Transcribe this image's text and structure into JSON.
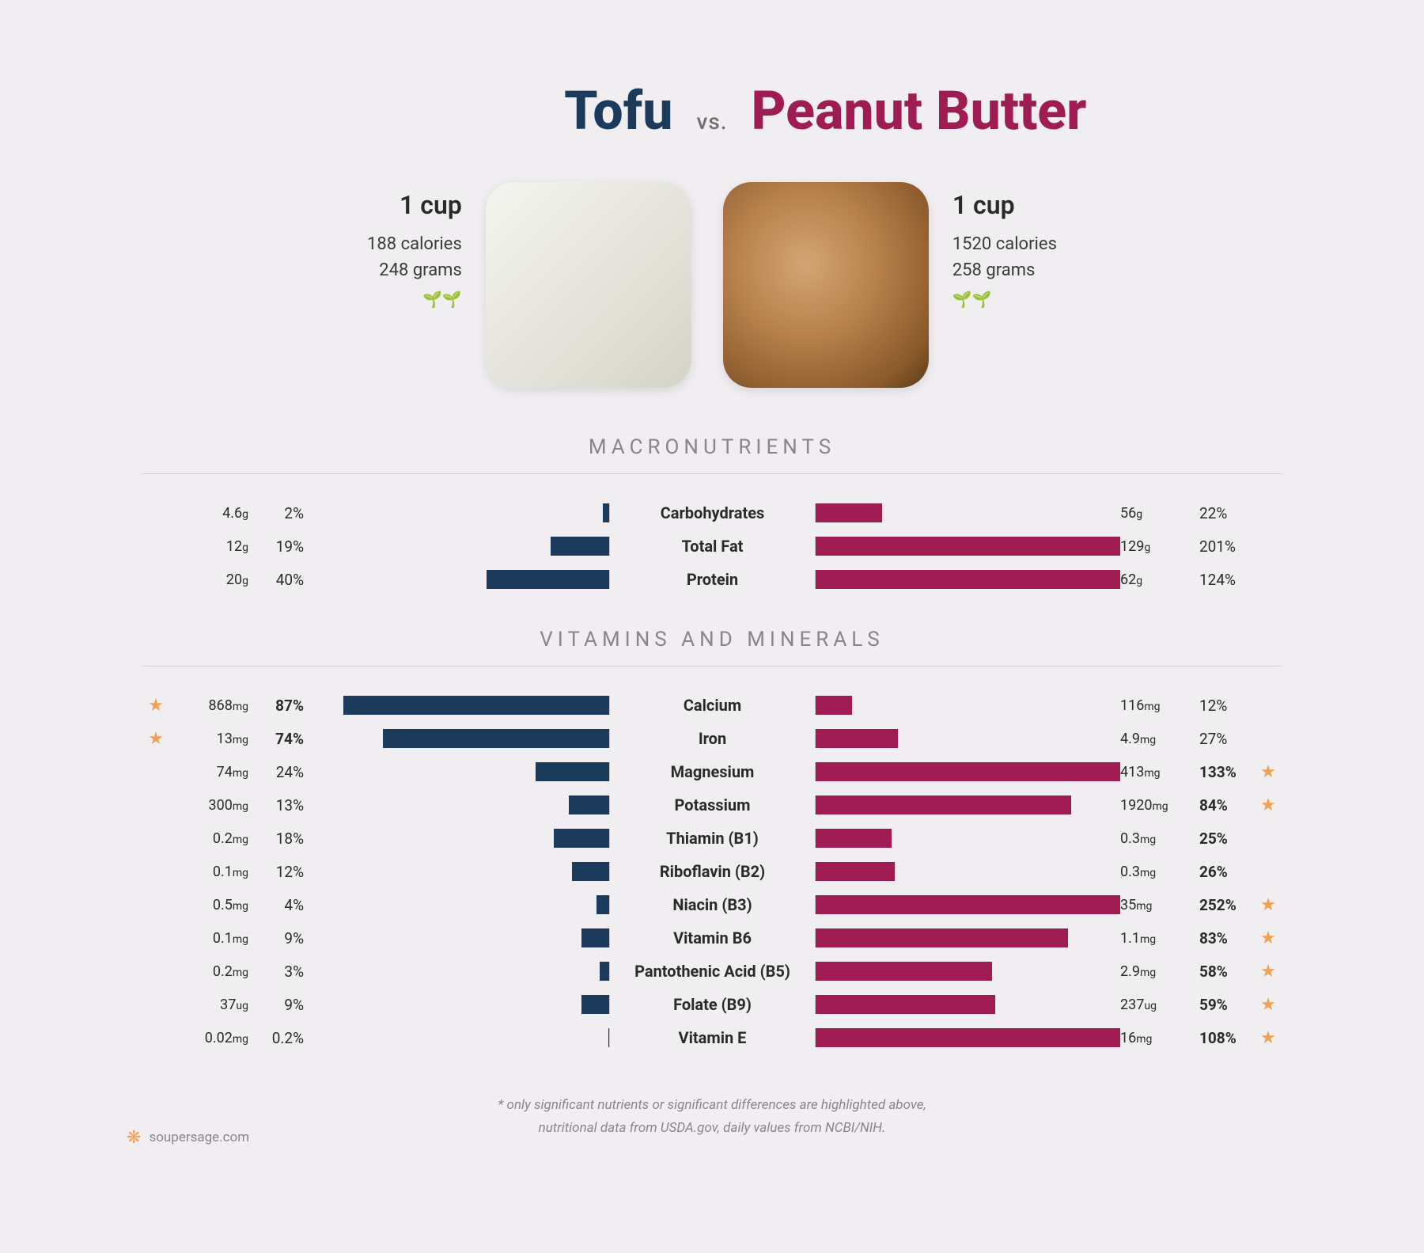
{
  "title": {
    "left": "Tofu",
    "vs": "vs.",
    "right": "Peanut Butter"
  },
  "colors": {
    "left": "#1b3a5c",
    "right": "#9e1c52",
    "star": "#f2a053",
    "text": "#2a2a2a",
    "muted": "#8a858a",
    "bg": "#f0eef0"
  },
  "foods": {
    "left": {
      "serving": "1 cup",
      "calories": "188 calories",
      "grams": "248 grams",
      "plant_icons": "🌱🌱"
    },
    "right": {
      "serving": "1 cup",
      "calories": "1520 calories",
      "grams": "258 grams",
      "plant_icons": "🌱🌱"
    }
  },
  "sections": {
    "macros": {
      "title": "MACRONUTRIENTS"
    },
    "vitmin": {
      "title": "VITAMINS AND MINERALS"
    }
  },
  "bar_max_pct": 100,
  "macros": [
    {
      "label": "Carbohydrates",
      "left_amt": "4.6",
      "left_unit": "g",
      "left_pct": 2,
      "right_amt": "56",
      "right_unit": "g",
      "right_pct": 22
    },
    {
      "label": "Total Fat",
      "left_amt": "12",
      "left_unit": "g",
      "left_pct": 19,
      "right_amt": "129",
      "right_unit": "g",
      "right_pct": 201
    },
    {
      "label": "Protein",
      "left_amt": "20",
      "left_unit": "g",
      "left_pct": 40,
      "right_amt": "62",
      "right_unit": "g",
      "right_pct": 124
    }
  ],
  "vitmin": [
    {
      "label": "Calcium",
      "left_amt": "868",
      "left_unit": "mg",
      "left_pct": 87,
      "left_bold": true,
      "left_star": true,
      "right_amt": "116",
      "right_unit": "mg",
      "right_pct": 12,
      "right_bold": false,
      "right_star": false
    },
    {
      "label": "Iron",
      "left_amt": "13",
      "left_unit": "mg",
      "left_pct": 74,
      "left_bold": true,
      "left_star": true,
      "right_amt": "4.9",
      "right_unit": "mg",
      "right_pct": 27,
      "right_bold": false,
      "right_star": false
    },
    {
      "label": "Magnesium",
      "left_amt": "74",
      "left_unit": "mg",
      "left_pct": 24,
      "left_bold": false,
      "left_star": false,
      "right_amt": "413",
      "right_unit": "mg",
      "right_pct": 133,
      "right_bold": true,
      "right_star": true
    },
    {
      "label": "Potassium",
      "left_amt": "300",
      "left_unit": "mg",
      "left_pct": 13,
      "left_bold": false,
      "left_star": false,
      "right_amt": "1920",
      "right_unit": "mg",
      "right_pct": 84,
      "right_bold": true,
      "right_star": true
    },
    {
      "label": "Thiamin (B1)",
      "left_amt": "0.2",
      "left_unit": "mg",
      "left_pct": 18,
      "left_bold": false,
      "left_star": false,
      "right_amt": "0.3",
      "right_unit": "mg",
      "right_pct": 25,
      "right_bold": true,
      "right_star": false
    },
    {
      "label": "Riboflavin (B2)",
      "left_amt": "0.1",
      "left_unit": "mg",
      "left_pct": 12,
      "left_bold": false,
      "left_star": false,
      "right_amt": "0.3",
      "right_unit": "mg",
      "right_pct": 26,
      "right_bold": true,
      "right_star": false
    },
    {
      "label": "Niacin (B3)",
      "left_amt": "0.5",
      "left_unit": "mg",
      "left_pct": 4,
      "left_bold": false,
      "left_star": false,
      "right_amt": "35",
      "right_unit": "mg",
      "right_pct": 252,
      "right_bold": true,
      "right_star": true
    },
    {
      "label": "Vitamin B6",
      "left_amt": "0.1",
      "left_unit": "mg",
      "left_pct": 9,
      "left_bold": false,
      "left_star": false,
      "right_amt": "1.1",
      "right_unit": "mg",
      "right_pct": 83,
      "right_bold": true,
      "right_star": true
    },
    {
      "label": "Pantothenic Acid (B5)",
      "left_amt": "0.2",
      "left_unit": "mg",
      "left_pct": 3,
      "left_bold": false,
      "left_star": false,
      "right_amt": "2.9",
      "right_unit": "mg",
      "right_pct": 58,
      "right_bold": true,
      "right_star": true
    },
    {
      "label": "Folate (B9)",
      "left_amt": "37",
      "left_unit": "ug",
      "left_pct": 9,
      "left_bold": false,
      "left_star": false,
      "right_amt": "237",
      "right_unit": "ug",
      "right_pct": 59,
      "right_bold": true,
      "right_star": true
    },
    {
      "label": "Vitamin E",
      "left_amt": "0.02",
      "left_unit": "mg",
      "left_pct": 0.2,
      "left_bold": false,
      "left_star": false,
      "right_amt": "16",
      "right_unit": "mg",
      "right_pct": 108,
      "right_bold": true,
      "right_star": true
    }
  ],
  "footnote_line1": "* only significant nutrients or significant differences are highlighted above,",
  "footnote_line2": "nutritional data from USDA.gov, daily values from NCBI/NIH.",
  "brand": "soupersage.com"
}
